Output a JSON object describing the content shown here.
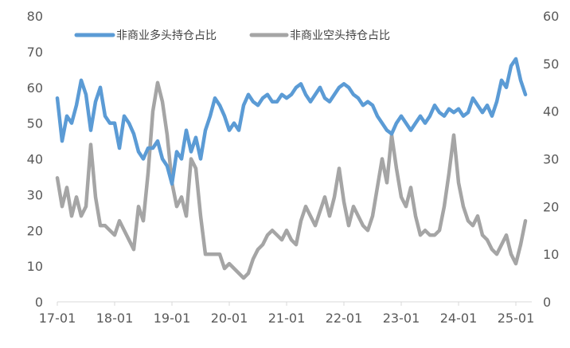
{
  "chart_data": {
    "type": "line",
    "title": "",
    "legend_position": "top-left",
    "grid": false,
    "x_ticks": [
      "17-01",
      "18-01",
      "19-01",
      "20-01",
      "21-01",
      "22-01",
      "23-01",
      "24-01",
      "25-01"
    ],
    "x_range": [
      "2017-01",
      "2025-03"
    ],
    "y_left": {
      "range": [
        0,
        80
      ],
      "ticks": [
        0,
        10,
        20,
        30,
        40,
        50,
        60,
        70,
        80
      ]
    },
    "y_right": {
      "range": [
        0,
        60
      ],
      "ticks": [
        0,
        10,
        20,
        30,
        40,
        50,
        60
      ]
    },
    "series": [
      {
        "name": "非商业多头持仓占比",
        "axis": "left",
        "color": "#5b9bd5",
        "points": [
          [
            "2017-01",
            57
          ],
          [
            "2017-02",
            45
          ],
          [
            "2017-03",
            52
          ],
          [
            "2017-04",
            50
          ],
          [
            "2017-05",
            55
          ],
          [
            "2017-06",
            62
          ],
          [
            "2017-07",
            58
          ],
          [
            "2017-08",
            48
          ],
          [
            "2017-09",
            56
          ],
          [
            "2017-10",
            60
          ],
          [
            "2017-11",
            52
          ],
          [
            "2017-12",
            50
          ],
          [
            "2018-01",
            50
          ],
          [
            "2018-02",
            43
          ],
          [
            "2018-03",
            52
          ],
          [
            "2018-04",
            50
          ],
          [
            "2018-05",
            47
          ],
          [
            "2018-06",
            42
          ],
          [
            "2018-07",
            40
          ],
          [
            "2018-08",
            43
          ],
          [
            "2018-09",
            43
          ],
          [
            "2018-10",
            45
          ],
          [
            "2018-11",
            40
          ],
          [
            "2018-12",
            38
          ],
          [
            "2019-01",
            33
          ],
          [
            "2019-02",
            42
          ],
          [
            "2019-03",
            40
          ],
          [
            "2019-04",
            48
          ],
          [
            "2019-05",
            42
          ],
          [
            "2019-06",
            46
          ],
          [
            "2019-07",
            40
          ],
          [
            "2019-08",
            48
          ],
          [
            "2019-09",
            52
          ],
          [
            "2019-10",
            57
          ],
          [
            "2019-11",
            55
          ],
          [
            "2019-12",
            52
          ],
          [
            "2020-01",
            48
          ],
          [
            "2020-02",
            50
          ],
          [
            "2020-03",
            48
          ],
          [
            "2020-04",
            55
          ],
          [
            "2020-05",
            58
          ],
          [
            "2020-06",
            56
          ],
          [
            "2020-07",
            55
          ],
          [
            "2020-08",
            57
          ],
          [
            "2020-09",
            58
          ],
          [
            "2020-10",
            56
          ],
          [
            "2020-11",
            56
          ],
          [
            "2020-12",
            58
          ],
          [
            "2021-01",
            57
          ],
          [
            "2021-02",
            58
          ],
          [
            "2021-03",
            60
          ],
          [
            "2021-04",
            61
          ],
          [
            "2021-05",
            58
          ],
          [
            "2021-06",
            56
          ],
          [
            "2021-07",
            58
          ],
          [
            "2021-08",
            60
          ],
          [
            "2021-09",
            57
          ],
          [
            "2021-10",
            56
          ],
          [
            "2021-11",
            58
          ],
          [
            "2021-12",
            60
          ],
          [
            "2022-01",
            61
          ],
          [
            "2022-02",
            60
          ],
          [
            "2022-03",
            58
          ],
          [
            "2022-04",
            57
          ],
          [
            "2022-05",
            55
          ],
          [
            "2022-06",
            56
          ],
          [
            "2022-07",
            55
          ],
          [
            "2022-08",
            52
          ],
          [
            "2022-09",
            50
          ],
          [
            "2022-10",
            48
          ],
          [
            "2022-11",
            47
          ],
          [
            "2022-12",
            50
          ],
          [
            "2023-01",
            52
          ],
          [
            "2023-02",
            50
          ],
          [
            "2023-03",
            48
          ],
          [
            "2023-04",
            50
          ],
          [
            "2023-05",
            52
          ],
          [
            "2023-06",
            50
          ],
          [
            "2023-07",
            52
          ],
          [
            "2023-08",
            55
          ],
          [
            "2023-09",
            53
          ],
          [
            "2023-10",
            52
          ],
          [
            "2023-11",
            54
          ],
          [
            "2023-12",
            53
          ],
          [
            "2024-01",
            54
          ],
          [
            "2024-02",
            52
          ],
          [
            "2024-03",
            53
          ],
          [
            "2024-04",
            57
          ],
          [
            "2024-05",
            55
          ],
          [
            "2024-06",
            53
          ],
          [
            "2024-07",
            55
          ],
          [
            "2024-08",
            52
          ],
          [
            "2024-09",
            56
          ],
          [
            "2024-10",
            62
          ],
          [
            "2024-11",
            60
          ],
          [
            "2024-12",
            66
          ],
          [
            "2025-01",
            68
          ],
          [
            "2025-02",
            62
          ],
          [
            "2025-03",
            58
          ]
        ]
      },
      {
        "name": "非商业空头持仓占比",
        "axis": "right",
        "color": "#a5a5a5",
        "points": [
          [
            "2017-01",
            26
          ],
          [
            "2017-02",
            20
          ],
          [
            "2017-03",
            24
          ],
          [
            "2017-04",
            18
          ],
          [
            "2017-05",
            22
          ],
          [
            "2017-06",
            18
          ],
          [
            "2017-07",
            20
          ],
          [
            "2017-08",
            33
          ],
          [
            "2017-09",
            22
          ],
          [
            "2017-10",
            16
          ],
          [
            "2017-11",
            16
          ],
          [
            "2017-12",
            15
          ],
          [
            "2018-01",
            14
          ],
          [
            "2018-02",
            17
          ],
          [
            "2018-03",
            15
          ],
          [
            "2018-04",
            13
          ],
          [
            "2018-05",
            11
          ],
          [
            "2018-06",
            20
          ],
          [
            "2018-07",
            17
          ],
          [
            "2018-08",
            27
          ],
          [
            "2018-09",
            40
          ],
          [
            "2018-10",
            46
          ],
          [
            "2018-11",
            42
          ],
          [
            "2018-12",
            35
          ],
          [
            "2019-01",
            25
          ],
          [
            "2019-02",
            20
          ],
          [
            "2019-03",
            22
          ],
          [
            "2019-04",
            18
          ],
          [
            "2019-05",
            30
          ],
          [
            "2019-06",
            28
          ],
          [
            "2019-07",
            18
          ],
          [
            "2019-08",
            10
          ],
          [
            "2019-09",
            10
          ],
          [
            "2019-10",
            10
          ],
          [
            "2019-11",
            10
          ],
          [
            "2019-12",
            7
          ],
          [
            "2020-01",
            8
          ],
          [
            "2020-02",
            7
          ],
          [
            "2020-03",
            6
          ],
          [
            "2020-04",
            5
          ],
          [
            "2020-05",
            6
          ],
          [
            "2020-06",
            9
          ],
          [
            "2020-07",
            11
          ],
          [
            "2020-08",
            12
          ],
          [
            "2020-09",
            14
          ],
          [
            "2020-10",
            15
          ],
          [
            "2020-11",
            14
          ],
          [
            "2020-12",
            13
          ],
          [
            "2021-01",
            15
          ],
          [
            "2021-02",
            13
          ],
          [
            "2021-03",
            12
          ],
          [
            "2021-04",
            17
          ],
          [
            "2021-05",
            20
          ],
          [
            "2021-06",
            18
          ],
          [
            "2021-07",
            16
          ],
          [
            "2021-08",
            19
          ],
          [
            "2021-09",
            22
          ],
          [
            "2021-10",
            18
          ],
          [
            "2021-11",
            22
          ],
          [
            "2021-12",
            28
          ],
          [
            "2022-01",
            21
          ],
          [
            "2022-02",
            16
          ],
          [
            "2022-03",
            20
          ],
          [
            "2022-04",
            18
          ],
          [
            "2022-05",
            16
          ],
          [
            "2022-06",
            15
          ],
          [
            "2022-07",
            18
          ],
          [
            "2022-08",
            24
          ],
          [
            "2022-09",
            30
          ],
          [
            "2022-10",
            25
          ],
          [
            "2022-11",
            35
          ],
          [
            "2022-12",
            28
          ],
          [
            "2023-01",
            22
          ],
          [
            "2023-02",
            20
          ],
          [
            "2023-03",
            24
          ],
          [
            "2023-04",
            18
          ],
          [
            "2023-05",
            14
          ],
          [
            "2023-06",
            15
          ],
          [
            "2023-07",
            14
          ],
          [
            "2023-08",
            14
          ],
          [
            "2023-09",
            15
          ],
          [
            "2023-10",
            20
          ],
          [
            "2023-11",
            27
          ],
          [
            "2023-12",
            35
          ],
          [
            "2024-01",
            25
          ],
          [
            "2024-02",
            20
          ],
          [
            "2024-03",
            17
          ],
          [
            "2024-04",
            16
          ],
          [
            "2024-05",
            18
          ],
          [
            "2024-06",
            14
          ],
          [
            "2024-07",
            13
          ],
          [
            "2024-08",
            11
          ],
          [
            "2024-09",
            10
          ],
          [
            "2024-10",
            12
          ],
          [
            "2024-11",
            14
          ],
          [
            "2024-12",
            10
          ],
          [
            "2025-01",
            8
          ],
          [
            "2025-02",
            12
          ],
          [
            "2025-03",
            17
          ]
        ]
      }
    ]
  }
}
